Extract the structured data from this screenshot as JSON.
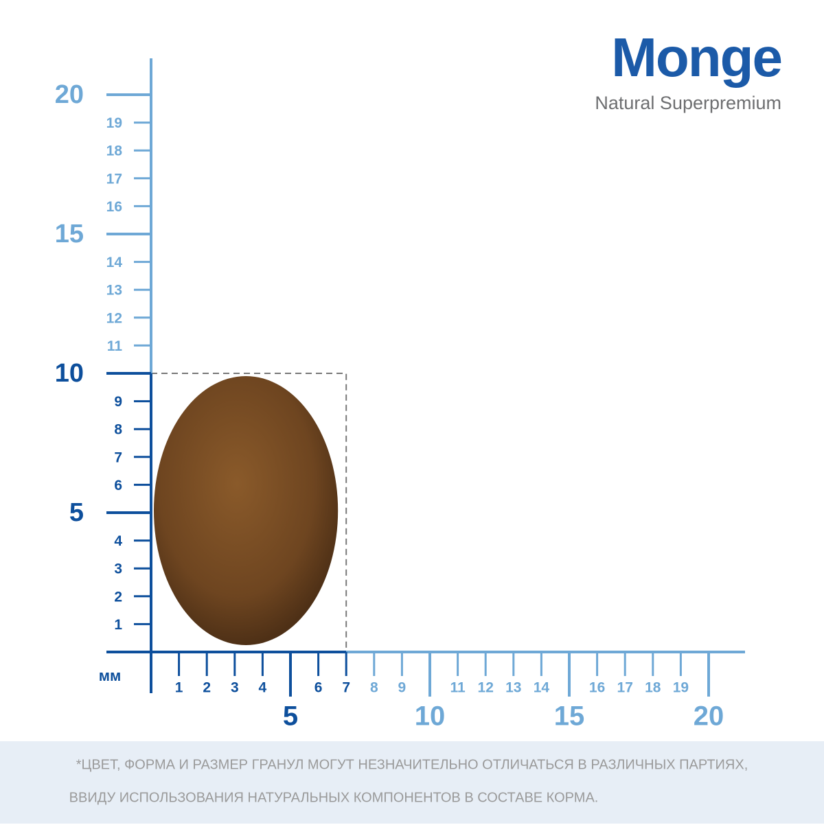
{
  "brand": {
    "name": "Monge",
    "tagline": "Natural Superpremium"
  },
  "unit": "мм",
  "y_axis": {
    "major": [
      5,
      10,
      15,
      20
    ],
    "minor": [
      1,
      2,
      3,
      4,
      6,
      7,
      8,
      9,
      11,
      12,
      13,
      14,
      16,
      17,
      18,
      19
    ]
  },
  "x_axis": {
    "major": [
      5,
      10,
      15,
      20
    ],
    "minor": [
      1,
      2,
      3,
      4,
      6,
      7,
      8,
      9,
      11,
      12,
      13,
      14,
      16,
      17,
      18,
      19
    ]
  },
  "kibble": {
    "width_mm": 7,
    "height_mm": 10
  },
  "footnote": [
    "*ЦВЕТ, ФОРМА И РАЗМЕР ГРАНУЛ МОГУТ НЕЗНАЧИТЕЛЬНО ОТЛИЧАТЬСЯ В РАЗЛИЧНЫХ ПАРТИЯХ,",
    "ВВИДУ ИСПОЛЬЗОВАНИЯ НАТУРАЛЬНЫХ КОМПОНЕНТОВ В СОСТАВЕ КОРМА."
  ]
}
